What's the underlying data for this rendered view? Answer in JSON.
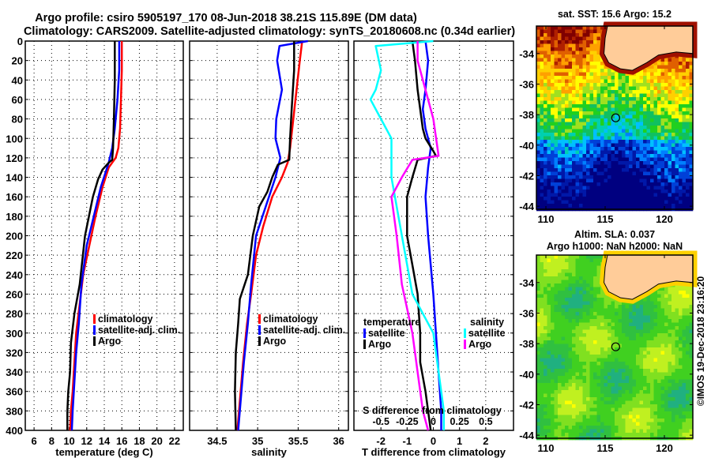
{
  "title": {
    "line1": "Argo profile: csiro 5905197_170 08-Jun-2018 38.21S 115.89E (DM data)",
    "line2": "Climatology: CARS2009. Satellite-adjusted climatology: synTS_20180608.nc (0.34d earlier)"
  },
  "credit": "©IMOS 19-Dec-2018 23:16:20",
  "colors": {
    "climatology": "#ff0000",
    "satellite_adj": "#0000ff",
    "argo": "#000000",
    "salinity_satellite": "#00ffff",
    "salinity_argo": "#ff00ff",
    "land": "#ffcc99"
  },
  "chart_data": [
    {
      "type": "line",
      "name": "temperature-profile",
      "xlabel": "temperature (deg C)",
      "ylabel": "",
      "xlim": [
        5,
        23.0
      ],
      "ylim": [
        400,
        0
      ],
      "xticks": [
        6,
        8,
        10,
        12,
        14,
        16,
        18,
        20,
        22
      ],
      "yticks": [
        0,
        20,
        40,
        60,
        80,
        100,
        120,
        140,
        160,
        180,
        200,
        220,
        240,
        260,
        280,
        300,
        320,
        340,
        360,
        380,
        400
      ],
      "grid": true,
      "legend": {
        "position": "middle-right",
        "entries": [
          "climatology",
          "satellite-adj. clim.",
          "Argo"
        ]
      },
      "series": [
        {
          "name": "climatology",
          "color": "#ff0000",
          "x": [
            16.0,
            16.0,
            15.9,
            15.8,
            15.6,
            15.3,
            14.5,
            13.8,
            13.0,
            12.3,
            11.6,
            11.2,
            10.8,
            10.6,
            10.4,
            10.2,
            10.1
          ],
          "y": [
            0,
            30,
            60,
            90,
            110,
            120,
            130,
            150,
            180,
            210,
            240,
            270,
            300,
            330,
            360,
            380,
            400
          ]
        },
        {
          "name": "satellite-adj. clim.",
          "color": "#0000ff",
          "x": [
            15.7,
            15.7,
            15.5,
            15.2,
            14.9,
            14.5,
            13.6,
            12.8,
            12.0,
            11.4,
            11.1,
            10.8,
            10.6,
            10.4,
            10.3
          ],
          "y": [
            0,
            30,
            60,
            90,
            110,
            125,
            150,
            180,
            210,
            250,
            290,
            320,
            350,
            380,
            400
          ]
        },
        {
          "name": "Argo",
          "color": "#000000",
          "x": [
            15.2,
            15.2,
            15.1,
            15.0,
            14.9,
            14.5,
            13.8,
            13.3,
            12.7,
            11.8,
            11.2,
            10.6,
            10.2,
            10.1,
            9.9,
            9.8,
            9.8
          ],
          "y": [
            0,
            40,
            80,
            110,
            122,
            125,
            132,
            142,
            160,
            200,
            250,
            280,
            310,
            340,
            360,
            380,
            400
          ]
        }
      ]
    },
    {
      "type": "line",
      "name": "salinity-profile",
      "xlabel": "salinity",
      "xlim": [
        34.16,
        36.12
      ],
      "ylim": [
        400,
        0
      ],
      "xticks": [
        34.5,
        35,
        35.5,
        36
      ],
      "grid": true,
      "legend": {
        "position": "middle-right",
        "entries": [
          "climatology",
          "satellite-adj. clim.",
          "Argo"
        ]
      },
      "series": [
        {
          "name": "climatology",
          "color": "#ff0000",
          "x": [
            35.55,
            35.52,
            35.48,
            35.44,
            35.4,
            35.37,
            35.3,
            35.18,
            35.07,
            34.98,
            34.92,
            34.87,
            34.82,
            34.78,
            34.75
          ],
          "y": [
            0,
            20,
            50,
            80,
            110,
            125,
            140,
            160,
            190,
            220,
            260,
            290,
            330,
            370,
            400
          ]
        },
        {
          "name": "satellite-adj. clim.",
          "color": "#0000ff",
          "x": [
            35.62,
            35.27,
            35.24,
            35.3,
            35.23,
            35.22,
            35.28,
            35.22,
            35.1,
            34.98,
            34.92,
            34.88,
            34.83,
            34.79,
            34.76
          ],
          "y": [
            0,
            5,
            20,
            50,
            80,
            100,
            120,
            140,
            170,
            200,
            250,
            290,
            330,
            370,
            400
          ]
        },
        {
          "name": "Argo",
          "color": "#000000",
          "x": [
            35.45,
            35.45,
            35.42,
            35.4,
            35.39,
            35.25,
            35.18,
            35.12,
            35.02,
            34.94,
            34.88,
            34.78,
            34.76,
            34.73,
            34.72,
            34.73
          ],
          "y": [
            0,
            30,
            70,
            100,
            122,
            127,
            140,
            155,
            170,
            200,
            240,
            265,
            290,
            320,
            360,
            400
          ]
        }
      ]
    },
    {
      "type": "line",
      "name": "difference-profile",
      "xlabel": "T difference from climatology",
      "xlabel_secondary": "S difference from climatology",
      "xlim": [
        -3.03,
        3.06
      ],
      "xlim_secondary": [
        -0.758,
        0.765
      ],
      "ylim": [
        400,
        0
      ],
      "xticks": [
        -2,
        -1,
        0,
        1,
        2
      ],
      "xticks_secondary": [
        -0.5,
        -0.25,
        0,
        0.25,
        0.5
      ],
      "grid": true,
      "legend": {
        "position": "middle",
        "groups": [
          {
            "title": "temperature",
            "entries": [
              "satellite",
              "Argo"
            ]
          },
          {
            "title": "salinity",
            "entries": [
              "satellite",
              "Argo"
            ]
          }
        ]
      },
      "series": [
        {
          "name": "temperature satellite",
          "color": "#0000ff",
          "axis": "T",
          "x": [
            -0.3,
            -0.2,
            -0.3,
            -0.4,
            -0.3,
            -0.1,
            -0.2,
            -0.3,
            -0.2,
            0.0,
            0.1,
            0.2,
            0.3,
            0.3
          ],
          "y": [
            0,
            20,
            50,
            70,
            90,
            110,
            130,
            160,
            200,
            260,
            300,
            340,
            380,
            400
          ]
        },
        {
          "name": "temperature Argo",
          "color": "#000000",
          "axis": "T",
          "x": [
            -0.8,
            -0.7,
            -0.6,
            -0.5,
            -0.4,
            -0.3,
            0.0,
            0.1,
            -0.6,
            -0.8,
            -1.0,
            -1.0,
            -0.8,
            -0.6,
            -0.5,
            -0.5,
            -0.3,
            -0.2,
            -0.1
          ],
          "y": [
            0,
            20,
            50,
            70,
            90,
            100,
            113,
            118,
            122,
            140,
            160,
            200,
            230,
            260,
            300,
            330,
            360,
            380,
            400
          ]
        },
        {
          "name": "salinity satellite",
          "color": "#00ffff",
          "axis": "S",
          "x": [
            0.0,
            -0.55,
            -0.5,
            -0.55,
            -0.6,
            -0.5,
            -0.4,
            -0.4,
            -0.3,
            -0.2,
            0.0,
            0.05,
            0.1,
            0.1
          ],
          "y": [
            0,
            5,
            30,
            50,
            60,
            80,
            100,
            140,
            200,
            260,
            300,
            340,
            380,
            400
          ]
        },
        {
          "name": "salinity Argo",
          "color": "#ff00ff",
          "axis": "S",
          "x": [
            -0.15,
            -0.15,
            -0.05,
            0.0,
            0.05,
            -0.2,
            -0.3,
            -0.4,
            -0.35,
            -0.3,
            -0.2,
            -0.15,
            -0.1,
            -0.05
          ],
          "y": [
            0,
            20,
            60,
            80,
            118,
            122,
            140,
            160,
            200,
            250,
            300,
            340,
            380,
            400
          ]
        }
      ]
    },
    {
      "type": "heatmap",
      "name": "sst-map",
      "title": "sat. SST: 15.6 Argo: 15.2",
      "xlim": [
        109.2,
        122.4
      ],
      "ylim": [
        -44.2,
        -32.2
      ],
      "xticks": [
        110,
        115,
        120
      ],
      "yticks": [
        -34,
        -36,
        -38,
        -40,
        -42,
        -44
      ],
      "argo_location": {
        "lon": 115.89,
        "lat": -38.21
      }
    },
    {
      "type": "heatmap",
      "name": "sla-map",
      "title": "Altim. SLA: 0.037",
      "subtitle": "Argo h1000: NaN h2000: NaN",
      "xlim": [
        109.2,
        122.4
      ],
      "ylim": [
        -44.2,
        -32.2
      ],
      "xticks": [
        110,
        115,
        120
      ],
      "yticks": [
        -34,
        -36,
        -38,
        -40,
        -42,
        -44
      ],
      "argo_location": {
        "lon": 115.89,
        "lat": -38.21
      }
    }
  ]
}
